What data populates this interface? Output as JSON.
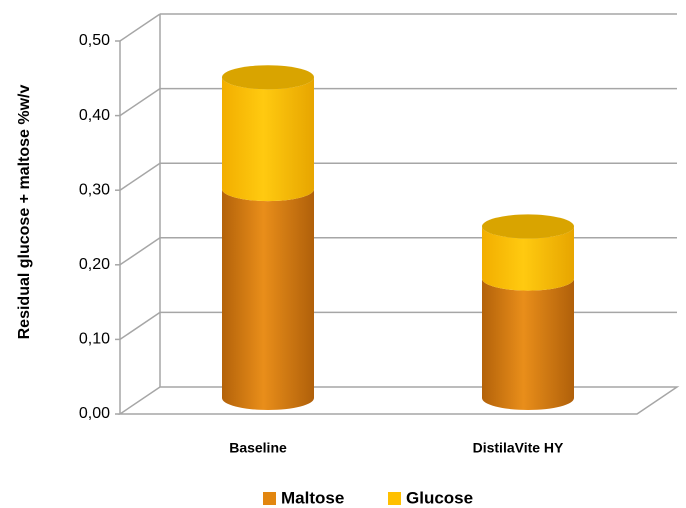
{
  "chart_data": {
    "type": "bar",
    "style": "3d-stacked-cylinder",
    "categories": [
      "Baseline",
      "DistilaVite HY"
    ],
    "series": [
      {
        "name": "Maltose",
        "values": [
          0.28,
          0.16
        ],
        "color": "#E2860F"
      },
      {
        "name": "Glucose",
        "values": [
          0.15,
          0.07
        ],
        "color": "#FFC000"
      }
    ],
    "ylabel": "Residual glucose + maltose %w/v",
    "ylim": [
      0,
      0.5
    ],
    "yticks": [
      "0,00",
      "0,10",
      "0,20",
      "0,30",
      "0,40",
      "0,50"
    ],
    "grid": true,
    "legend": "bottom"
  }
}
